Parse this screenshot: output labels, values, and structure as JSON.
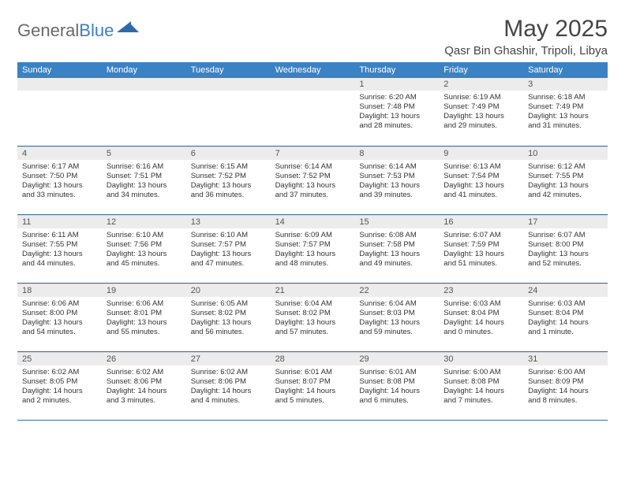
{
  "logo": {
    "text_general": "General",
    "text_blue": "Blue"
  },
  "title": "May 2025",
  "location": "Qasr Bin Ghashir, Tripoli, Libya",
  "colors": {
    "header_bg": "#3b82c4",
    "header_text": "#ffffff",
    "daynum_bg": "#ececec",
    "daynum_text": "#555555",
    "body_text": "#333333",
    "week_border": "#3b6fa0",
    "title_text": "#454545",
    "logo_gray": "#6a6a6a",
    "logo_blue": "#3b7fc4"
  },
  "day_names": [
    "Sunday",
    "Monday",
    "Tuesday",
    "Wednesday",
    "Thursday",
    "Friday",
    "Saturday"
  ],
  "weeks": [
    [
      {
        "empty": true
      },
      {
        "empty": true
      },
      {
        "empty": true
      },
      {
        "empty": true
      },
      {
        "n": "1",
        "sr": "6:20 AM",
        "ss": "7:48 PM",
        "dl": "Daylight: 13 hours and 28 minutes."
      },
      {
        "n": "2",
        "sr": "6:19 AM",
        "ss": "7:49 PM",
        "dl": "Daylight: 13 hours and 29 minutes."
      },
      {
        "n": "3",
        "sr": "6:18 AM",
        "ss": "7:49 PM",
        "dl": "Daylight: 13 hours and 31 minutes."
      }
    ],
    [
      {
        "n": "4",
        "sr": "6:17 AM",
        "ss": "7:50 PM",
        "dl": "Daylight: 13 hours and 33 minutes."
      },
      {
        "n": "5",
        "sr": "6:16 AM",
        "ss": "7:51 PM",
        "dl": "Daylight: 13 hours and 34 minutes."
      },
      {
        "n": "6",
        "sr": "6:15 AM",
        "ss": "7:52 PM",
        "dl": "Daylight: 13 hours and 36 minutes."
      },
      {
        "n": "7",
        "sr": "6:14 AM",
        "ss": "7:52 PM",
        "dl": "Daylight: 13 hours and 37 minutes."
      },
      {
        "n": "8",
        "sr": "6:14 AM",
        "ss": "7:53 PM",
        "dl": "Daylight: 13 hours and 39 minutes."
      },
      {
        "n": "9",
        "sr": "6:13 AM",
        "ss": "7:54 PM",
        "dl": "Daylight: 13 hours and 41 minutes."
      },
      {
        "n": "10",
        "sr": "6:12 AM",
        "ss": "7:55 PM",
        "dl": "Daylight: 13 hours and 42 minutes."
      }
    ],
    [
      {
        "n": "11",
        "sr": "6:11 AM",
        "ss": "7:55 PM",
        "dl": "Daylight: 13 hours and 44 minutes."
      },
      {
        "n": "12",
        "sr": "6:10 AM",
        "ss": "7:56 PM",
        "dl": "Daylight: 13 hours and 45 minutes."
      },
      {
        "n": "13",
        "sr": "6:10 AM",
        "ss": "7:57 PM",
        "dl": "Daylight: 13 hours and 47 minutes."
      },
      {
        "n": "14",
        "sr": "6:09 AM",
        "ss": "7:57 PM",
        "dl": "Daylight: 13 hours and 48 minutes."
      },
      {
        "n": "15",
        "sr": "6:08 AM",
        "ss": "7:58 PM",
        "dl": "Daylight: 13 hours and 49 minutes."
      },
      {
        "n": "16",
        "sr": "6:07 AM",
        "ss": "7:59 PM",
        "dl": "Daylight: 13 hours and 51 minutes."
      },
      {
        "n": "17",
        "sr": "6:07 AM",
        "ss": "8:00 PM",
        "dl": "Daylight: 13 hours and 52 minutes."
      }
    ],
    [
      {
        "n": "18",
        "sr": "6:06 AM",
        "ss": "8:00 PM",
        "dl": "Daylight: 13 hours and 54 minutes."
      },
      {
        "n": "19",
        "sr": "6:06 AM",
        "ss": "8:01 PM",
        "dl": "Daylight: 13 hours and 55 minutes."
      },
      {
        "n": "20",
        "sr": "6:05 AM",
        "ss": "8:02 PM",
        "dl": "Daylight: 13 hours and 56 minutes."
      },
      {
        "n": "21",
        "sr": "6:04 AM",
        "ss": "8:02 PM",
        "dl": "Daylight: 13 hours and 57 minutes."
      },
      {
        "n": "22",
        "sr": "6:04 AM",
        "ss": "8:03 PM",
        "dl": "Daylight: 13 hours and 59 minutes."
      },
      {
        "n": "23",
        "sr": "6:03 AM",
        "ss": "8:04 PM",
        "dl": "Daylight: 14 hours and 0 minutes."
      },
      {
        "n": "24",
        "sr": "6:03 AM",
        "ss": "8:04 PM",
        "dl": "Daylight: 14 hours and 1 minute."
      }
    ],
    [
      {
        "n": "25",
        "sr": "6:02 AM",
        "ss": "8:05 PM",
        "dl": "Daylight: 14 hours and 2 minutes."
      },
      {
        "n": "26",
        "sr": "6:02 AM",
        "ss": "8:06 PM",
        "dl": "Daylight: 14 hours and 3 minutes."
      },
      {
        "n": "27",
        "sr": "6:02 AM",
        "ss": "8:06 PM",
        "dl": "Daylight: 14 hours and 4 minutes."
      },
      {
        "n": "28",
        "sr": "6:01 AM",
        "ss": "8:07 PM",
        "dl": "Daylight: 14 hours and 5 minutes."
      },
      {
        "n": "29",
        "sr": "6:01 AM",
        "ss": "8:08 PM",
        "dl": "Daylight: 14 hours and 6 minutes."
      },
      {
        "n": "30",
        "sr": "6:00 AM",
        "ss": "8:08 PM",
        "dl": "Daylight: 14 hours and 7 minutes."
      },
      {
        "n": "31",
        "sr": "6:00 AM",
        "ss": "8:09 PM",
        "dl": "Daylight: 14 hours and 8 minutes."
      }
    ]
  ]
}
